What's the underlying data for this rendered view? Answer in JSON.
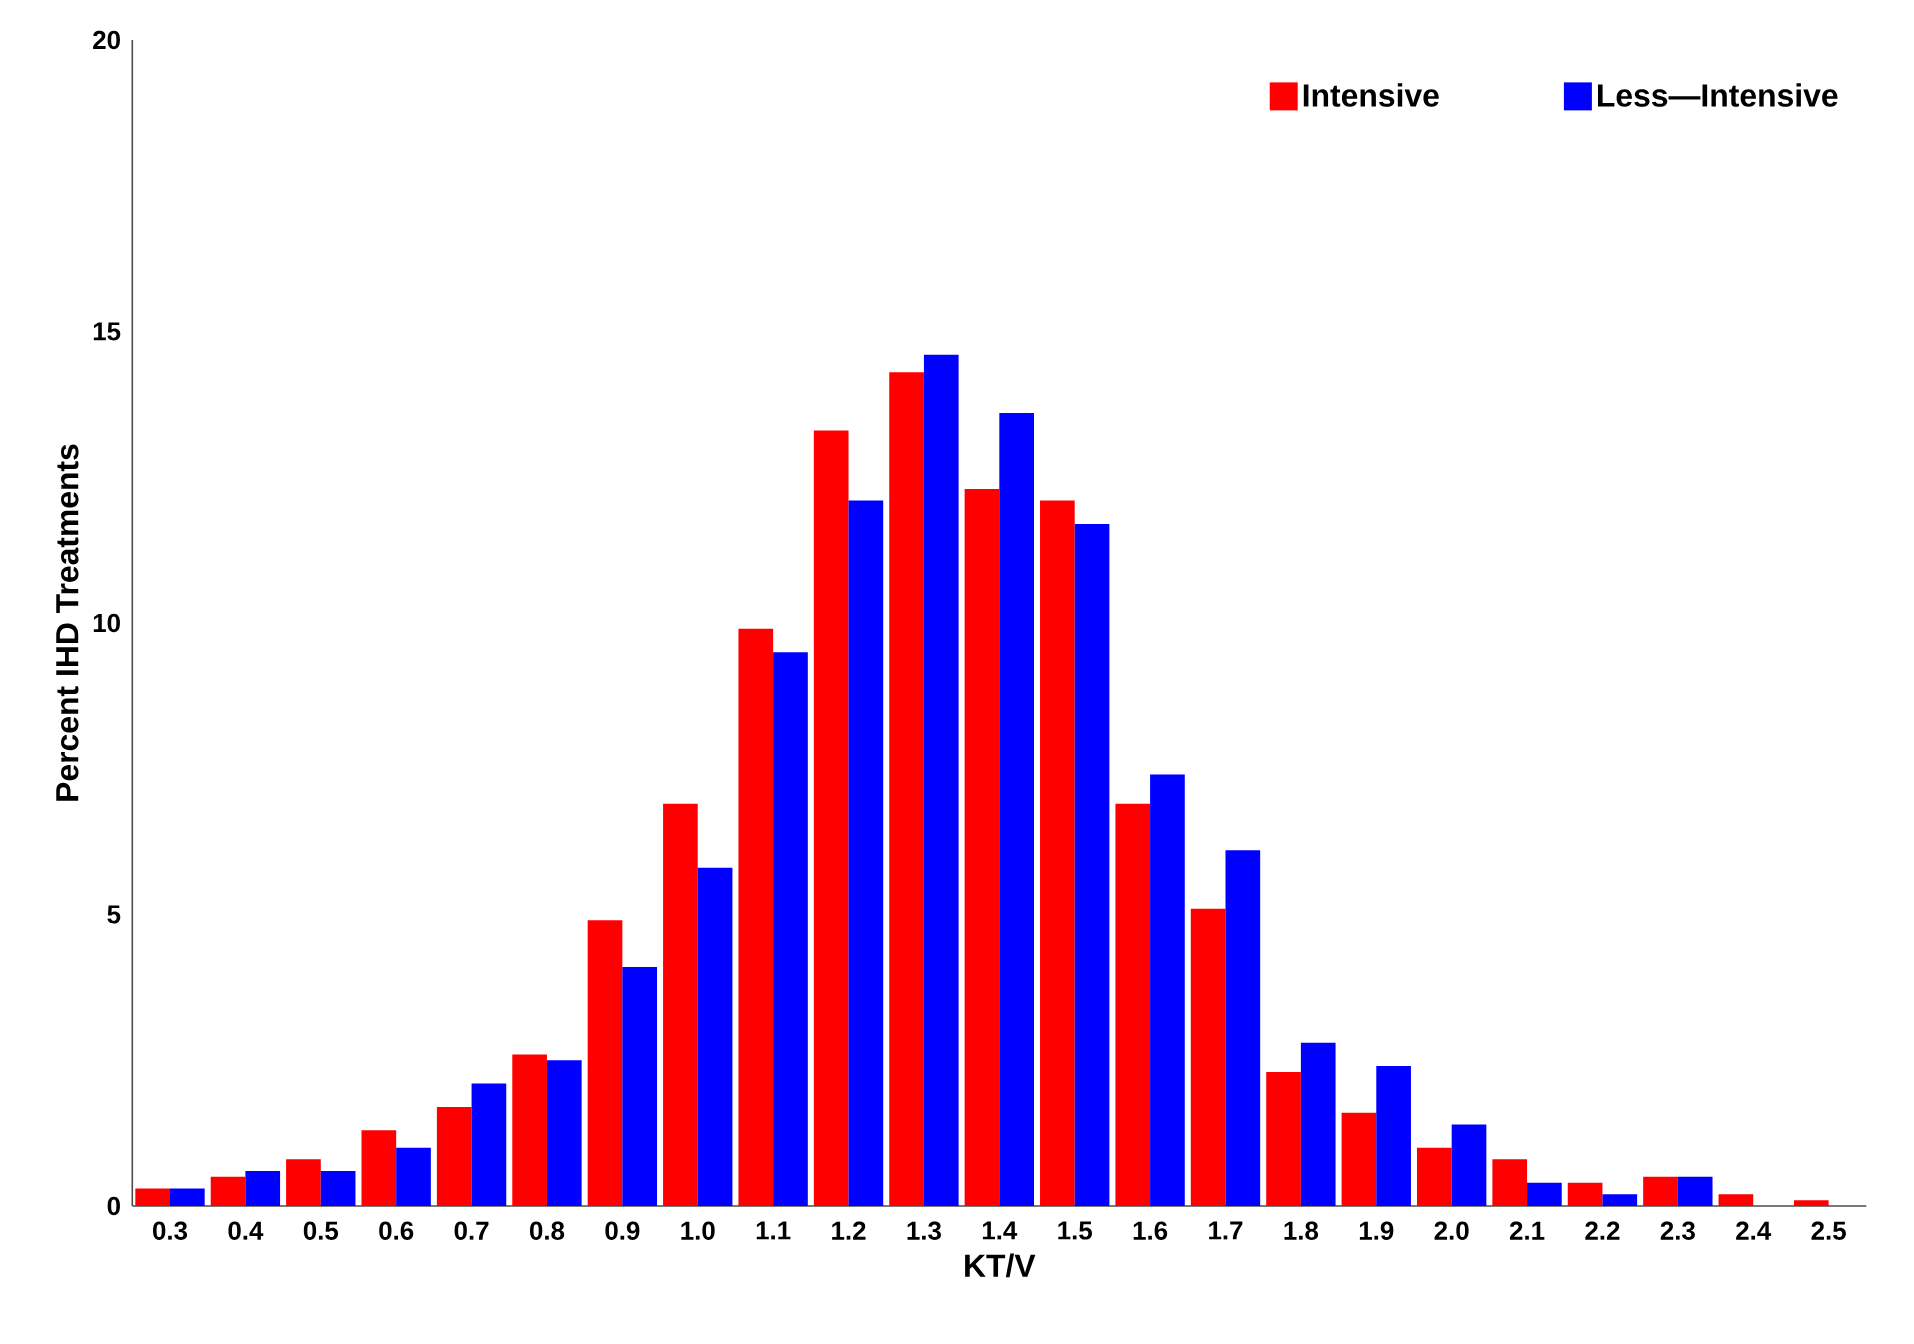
{
  "chart_data": {
    "type": "bar",
    "xlabel": "KT/V",
    "ylabel": "Percent IHD Treatments",
    "categories": [
      "0.3",
      "0.4",
      "0.5",
      "0.6",
      "0.7",
      "0.8",
      "0.9",
      "1.0",
      "1.1",
      "1.2",
      "1.3",
      "1.4",
      "1.5",
      "1.6",
      "1.7",
      "1.8",
      "1.9",
      "2.0",
      "2.1",
      "2.2",
      "2.3",
      "2.4",
      "2.5"
    ],
    "series": [
      {
        "name": "Intensive",
        "color": "#ff0000",
        "values": [
          0.3,
          0.5,
          0.8,
          1.3,
          1.7,
          2.6,
          4.9,
          6.9,
          9.9,
          13.3,
          14.3,
          12.3,
          12.1,
          6.9,
          5.1,
          2.3,
          1.6,
          1.0,
          0.8,
          0.4,
          0.5,
          0.2,
          0.1
        ]
      },
      {
        "name": "Less—Intensive",
        "color": "#0000ff",
        "values": [
          0.3,
          0.6,
          0.6,
          1.0,
          2.1,
          2.5,
          4.1,
          5.8,
          9.5,
          12.1,
          14.6,
          13.6,
          11.7,
          7.4,
          6.1,
          2.8,
          2.4,
          1.4,
          0.4,
          0.2,
          0.5,
          0,
          0
        ]
      }
    ],
    "ylim": [
      0,
      20
    ],
    "yticks": [
      0,
      5,
      10,
      15,
      20
    ],
    "legend": "top right"
  }
}
